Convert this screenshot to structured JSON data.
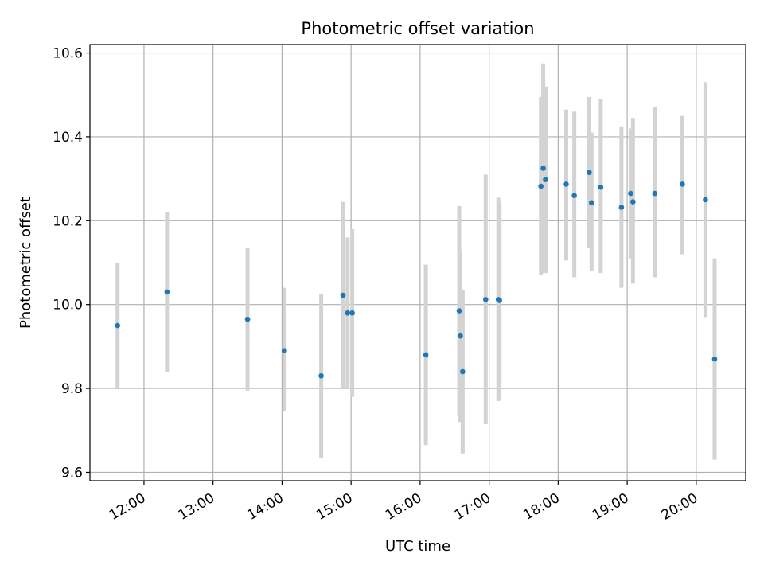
{
  "chart_data": {
    "type": "scatter",
    "title": "Photometric offset variation",
    "xlabel": "UTC time",
    "ylabel": "Photometric offset",
    "x_ticks": [
      "12:00",
      "13:00",
      "14:00",
      "15:00",
      "16:00",
      "17:00",
      "18:00",
      "19:00",
      "20:00"
    ],
    "y_ticks": [
      "9.6",
      "9.8",
      "10.0",
      "10.2",
      "10.4",
      "10.6"
    ],
    "xlim": [
      "11:13",
      "20:43"
    ],
    "ylim": [
      9.58,
      10.62
    ],
    "grid": true,
    "point_color": "#1f77b4",
    "errorbar_color": "#d3d3d3",
    "points": [
      {
        "time": "11:37",
        "y": 9.95,
        "err_low": 9.8,
        "err_high": 10.1
      },
      {
        "time": "12:20",
        "y": 10.03,
        "err_low": 9.84,
        "err_high": 10.22
      },
      {
        "time": "13:30",
        "y": 9.965,
        "err_low": 9.795,
        "err_high": 10.135
      },
      {
        "time": "14:02",
        "y": 9.89,
        "err_low": 9.745,
        "err_high": 10.04
      },
      {
        "time": "14:34",
        "y": 9.83,
        "err_low": 9.635,
        "err_high": 10.025
      },
      {
        "time": "14:53",
        "y": 10.022,
        "err_low": 9.8,
        "err_high": 10.245
      },
      {
        "time": "14:57",
        "y": 9.98,
        "err_low": 9.8,
        "err_high": 10.16
      },
      {
        "time": "15:01",
        "y": 9.98,
        "err_low": 9.78,
        "err_high": 10.18
      },
      {
        "time": "16:05",
        "y": 9.88,
        "err_low": 9.665,
        "err_high": 10.095
      },
      {
        "time": "16:34",
        "y": 9.985,
        "err_low": 9.735,
        "err_high": 10.235
      },
      {
        "time": "16:35",
        "y": 9.925,
        "err_low": 9.72,
        "err_high": 10.13
      },
      {
        "time": "16:37",
        "y": 9.84,
        "err_low": 9.645,
        "err_high": 10.035
      },
      {
        "time": "16:57",
        "y": 10.012,
        "err_low": 9.715,
        "err_high": 10.31
      },
      {
        "time": "17:08",
        "y": 10.012,
        "err_low": 9.77,
        "err_high": 10.255
      },
      {
        "time": "17:09",
        "y": 10.01,
        "err_low": 9.775,
        "err_high": 10.245
      },
      {
        "time": "17:45",
        "y": 10.282,
        "err_low": 10.07,
        "err_high": 10.495
      },
      {
        "time": "17:47",
        "y": 10.325,
        "err_low": 10.075,
        "err_high": 10.575
      },
      {
        "time": "17:49",
        "y": 10.298,
        "err_low": 10.075,
        "err_high": 10.52
      },
      {
        "time": "18:07",
        "y": 10.287,
        "err_low": 10.105,
        "err_high": 10.465
      },
      {
        "time": "18:14",
        "y": 10.26,
        "err_low": 10.065,
        "err_high": 10.46
      },
      {
        "time": "18:27",
        "y": 10.315,
        "err_low": 10.135,
        "err_high": 10.495
      },
      {
        "time": "18:29",
        "y": 10.243,
        "err_low": 10.08,
        "err_high": 10.41
      },
      {
        "time": "18:37",
        "y": 10.28,
        "err_low": 10.075,
        "err_high": 10.49
      },
      {
        "time": "18:55",
        "y": 10.232,
        "err_low": 10.04,
        "err_high": 10.425
      },
      {
        "time": "19:03",
        "y": 10.265,
        "err_low": 10.11,
        "err_high": 10.42
      },
      {
        "time": "19:05",
        "y": 10.245,
        "err_low": 10.05,
        "err_high": 10.445
      },
      {
        "time": "19:24",
        "y": 10.265,
        "err_low": 10.065,
        "err_high": 10.47
      },
      {
        "time": "19:48",
        "y": 10.287,
        "err_low": 10.12,
        "err_high": 10.45
      },
      {
        "time": "20:08",
        "y": 10.25,
        "err_low": 9.97,
        "err_high": 10.53
      },
      {
        "time": "20:16",
        "y": 9.87,
        "err_low": 9.63,
        "err_high": 10.11
      }
    ]
  }
}
